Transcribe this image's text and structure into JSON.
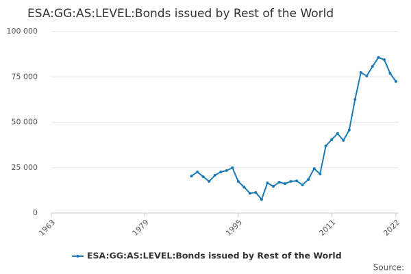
{
  "chart_data": {
    "type": "line",
    "title": "ESA:GG:AS:LEVEL:Bonds issued by Rest of the World",
    "x": [
      1987,
      1988,
      1989,
      1990,
      1991,
      1992,
      1993,
      1994,
      1995,
      1996,
      1997,
      1998,
      1999,
      2000,
      2001,
      2002,
      2003,
      2004,
      2005,
      2006,
      2007,
      2008,
      2009,
      2010,
      2011,
      2012,
      2013,
      2014,
      2015,
      2016,
      2017,
      2018,
      2019,
      2020,
      2021,
      2022
    ],
    "series": [
      {
        "name": "ESA:GG:AS:LEVEL:Bonds issued by Rest of the World",
        "color": "#1a7ab8",
        "values": [
          20400,
          22600,
          20000,
          17400,
          20800,
          22600,
          23400,
          24900,
          17400,
          14300,
          10900,
          11300,
          7500,
          16600,
          14700,
          17000,
          16200,
          17400,
          17700,
          15500,
          18500,
          24500,
          21500,
          37000,
          40400,
          43800,
          40000,
          45700,
          62600,
          77400,
          75500,
          80800,
          85700,
          84500,
          77000,
          72500
        ]
      }
    ],
    "xlim": [
      1963,
      2022
    ],
    "xticks": [
      1963,
      1979,
      1995,
      2011,
      2022
    ],
    "ylim": [
      0,
      100000
    ],
    "yticks": [
      0,
      {
        "value": 25000,
        "label": "25 000"
      },
      {
        "value": 50000,
        "label": "50 000"
      },
      {
        "value": 75000,
        "label": "75 000"
      },
      {
        "value": 100000,
        "label": "100 000"
      }
    ],
    "grid": true,
    "legend": "bottom",
    "source": "Source:"
  }
}
